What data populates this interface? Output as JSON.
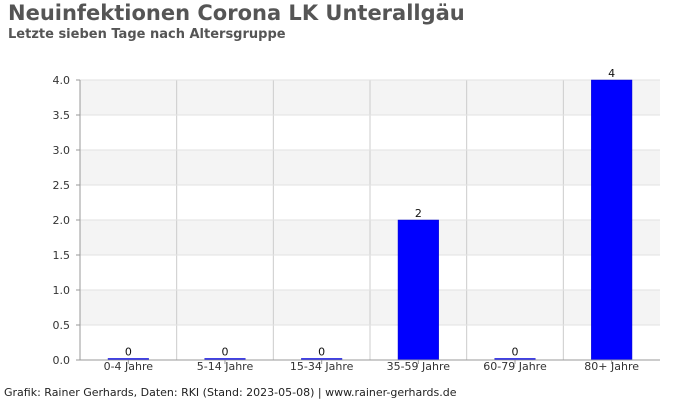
{
  "title": "Neuinfektionen Corona LK Unterallgäu",
  "subtitle": "Letzte sieben Tage nach Altersgruppe",
  "footer": "Grafik: Rainer Gerhards, Daten: RKI (Stand: 2023-05-08) | www.rainer-gerhards.de",
  "colors": {
    "bar": "#0000ff",
    "band_light": "#f4f4f4",
    "band_white": "#ffffff",
    "grid": "#cccccc",
    "axis": "#999999"
  },
  "chart_data": {
    "type": "bar",
    "categories": [
      "0-4 Jahre",
      "5-14 Jahre",
      "15-34 Jahre",
      "35-59 Jahre",
      "60-79 Jahre",
      "80+ Jahre"
    ],
    "values": [
      0,
      0,
      0,
      2,
      0,
      4
    ],
    "data_labels": [
      "0",
      "0",
      "0",
      "2",
      "0",
      "4"
    ],
    "ylim": [
      0,
      4
    ],
    "yticks": [
      "0.0",
      "0.5",
      "1.0",
      "1.5",
      "2.0",
      "2.5",
      "3.0",
      "3.5",
      "4.0"
    ],
    "xlabel": "",
    "ylabel": "",
    "grid": true,
    "legend": false
  }
}
